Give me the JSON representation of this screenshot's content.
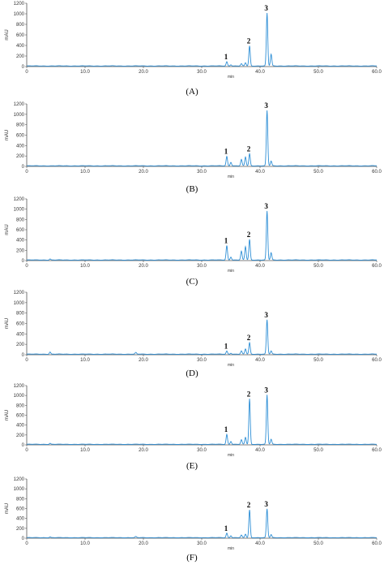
{
  "chart_data": [
    {
      "type": "line",
      "panel_label": "(A)",
      "ylabel": "mAU",
      "xlabel": "min",
      "xlim": [
        0,
        60
      ],
      "ylim": [
        0,
        1200
      ],
      "yticks": [
        "0",
        "200",
        "400",
        "600",
        "800",
        "1000",
        "1200"
      ],
      "xticks": [
        "0",
        "10.0",
        "20.0",
        "30.0",
        "40.0",
        "50.0",
        "60.0"
      ],
      "line_color": "#2E8FD6",
      "peaks": [
        {
          "rt": 34.3,
          "height": 80,
          "label": "1"
        },
        {
          "rt": 38.2,
          "height": 380,
          "label": "2"
        },
        {
          "rt": 41.2,
          "height": 1000,
          "label": "3"
        }
      ],
      "minor_peaks": [
        {
          "rt": 35.0,
          "height": 25
        },
        {
          "rt": 36.8,
          "height": 40
        },
        {
          "rt": 37.5,
          "height": 60
        },
        {
          "rt": 41.9,
          "height": 220
        }
      ]
    },
    {
      "type": "line",
      "panel_label": "(B)",
      "ylabel": "mAU",
      "xlabel": "min",
      "xlim": [
        0,
        60
      ],
      "ylim": [
        0,
        1200
      ],
      "yticks": [
        "0",
        "200",
        "400",
        "600",
        "800",
        "1000",
        "1200"
      ],
      "xticks": [
        "0",
        "10.0",
        "20.0",
        "30.0",
        "40.0",
        "50.0",
        "60.0"
      ],
      "line_color": "#2E8FD6",
      "peaks": [
        {
          "rt": 34.3,
          "height": 180,
          "label": "1"
        },
        {
          "rt": 38.2,
          "height": 230,
          "label": "2"
        },
        {
          "rt": 41.2,
          "height": 1060,
          "label": "3"
        }
      ],
      "minor_peaks": [
        {
          "rt": 35.0,
          "height": 70
        },
        {
          "rt": 36.8,
          "height": 120
        },
        {
          "rt": 37.5,
          "height": 170
        },
        {
          "rt": 41.9,
          "height": 90
        }
      ]
    },
    {
      "type": "line",
      "panel_label": "(C)",
      "ylabel": "mAU",
      "xlabel": "min",
      "xlim": [
        0,
        60
      ],
      "ylim": [
        0,
        1200
      ],
      "yticks": [
        "0",
        "200",
        "400",
        "600",
        "800",
        "1000",
        "1200"
      ],
      "xticks": [
        "0",
        "10.0",
        "20.0",
        "30.0",
        "40.0",
        "50.0",
        "60.0"
      ],
      "line_color": "#2E8FD6",
      "peaks": [
        {
          "rt": 34.3,
          "height": 280,
          "label": "1"
        },
        {
          "rt": 38.2,
          "height": 400,
          "label": "2"
        },
        {
          "rt": 41.2,
          "height": 950,
          "label": "3"
        }
      ],
      "minor_peaks": [
        {
          "rt": 35.0,
          "height": 60
        },
        {
          "rt": 36.8,
          "height": 170
        },
        {
          "rt": 37.5,
          "height": 260
        },
        {
          "rt": 41.9,
          "height": 140
        },
        {
          "rt": 4.0,
          "height": 20
        }
      ]
    },
    {
      "type": "line",
      "panel_label": "(D)",
      "ylabel": "mAU",
      "xlabel": "min",
      "xlim": [
        0,
        60
      ],
      "ylim": [
        0,
        1200
      ],
      "yticks": [
        "0",
        "200",
        "400",
        "600",
        "800",
        "1000",
        "1200"
      ],
      "xticks": [
        "0",
        "10.0",
        "20.0",
        "30.0",
        "40.0",
        "50.0",
        "60.0"
      ],
      "line_color": "#2E8FD6",
      "peaks": [
        {
          "rt": 34.3,
          "height": 60,
          "label": "1"
        },
        {
          "rt": 38.2,
          "height": 220,
          "label": "2"
        },
        {
          "rt": 41.2,
          "height": 660,
          "label": "3"
        }
      ],
      "minor_peaks": [
        {
          "rt": 35.0,
          "height": 20
        },
        {
          "rt": 36.8,
          "height": 60
        },
        {
          "rt": 37.5,
          "height": 100
        },
        {
          "rt": 41.9,
          "height": 60
        },
        {
          "rt": 4.0,
          "height": 40
        },
        {
          "rt": 18.7,
          "height": 30
        }
      ]
    },
    {
      "type": "line",
      "panel_label": "(E)",
      "ylabel": "mAU",
      "xlabel": "min",
      "xlim": [
        0,
        60
      ],
      "ylim": [
        0,
        1200
      ],
      "yticks": [
        "0",
        "200",
        "400",
        "600",
        "800",
        "1000",
        "1200"
      ],
      "xticks": [
        "0",
        "10.0",
        "20.0",
        "30.0",
        "40.0",
        "50.0",
        "60.0"
      ],
      "line_color": "#2E8FD6",
      "peaks": [
        {
          "rt": 34.3,
          "height": 200,
          "label": "1"
        },
        {
          "rt": 38.2,
          "height": 920,
          "label": "2"
        },
        {
          "rt": 41.2,
          "height": 1000,
          "label": "3"
        }
      ],
      "minor_peaks": [
        {
          "rt": 35.0,
          "height": 60
        },
        {
          "rt": 36.8,
          "height": 90
        },
        {
          "rt": 37.5,
          "height": 140
        },
        {
          "rt": 41.9,
          "height": 100
        },
        {
          "rt": 4.0,
          "height": 20
        }
      ]
    },
    {
      "type": "line",
      "panel_label": "(F)",
      "ylabel": "mAU",
      "xlabel": "min",
      "xlim": [
        0,
        60
      ],
      "ylim": [
        0,
        1200
      ],
      "yticks": [
        "0",
        "200",
        "400",
        "600",
        "800",
        "1000",
        "1200"
      ],
      "xticks": [
        "0",
        "10.0",
        "20.0",
        "30.0",
        "40.0",
        "50.0",
        "60.0"
      ],
      "line_color": "#2E8FD6",
      "peaks": [
        {
          "rt": 34.3,
          "height": 90,
          "label": "1"
        },
        {
          "rt": 38.2,
          "height": 560,
          "label": "2"
        },
        {
          "rt": 41.2,
          "height": 580,
          "label": "3"
        }
      ],
      "minor_peaks": [
        {
          "rt": 35.0,
          "height": 40
        },
        {
          "rt": 36.8,
          "height": 50
        },
        {
          "rt": 37.5,
          "height": 70
        },
        {
          "rt": 41.9,
          "height": 60
        },
        {
          "rt": 4.0,
          "height": 15
        },
        {
          "rt": 18.7,
          "height": 20
        }
      ]
    }
  ]
}
